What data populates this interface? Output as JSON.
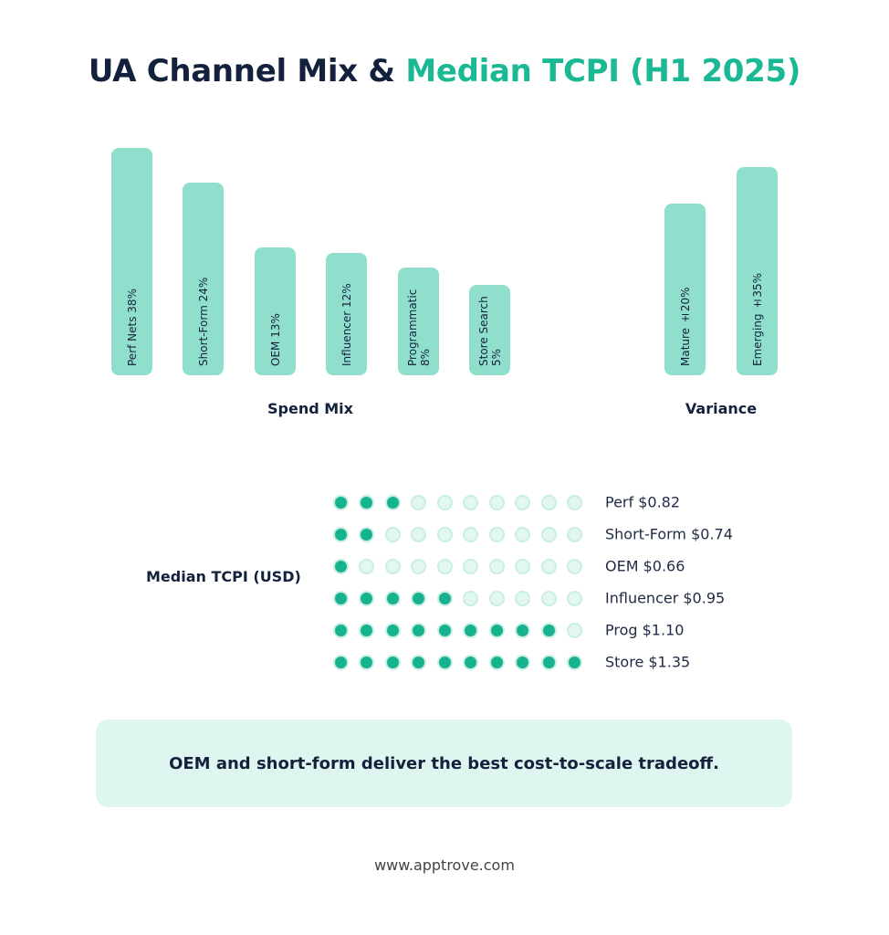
{
  "title": {
    "part1": "UA Channel Mix &",
    "part2": "Median TCPI (H1 2025)"
  },
  "spend_mix": {
    "label": "Spend Mix",
    "bars": [
      "Perf Nets 38%",
      "Short-Form 24%",
      "OEM 13%",
      "Influencer 12%",
      "Programmatic 8%",
      "Store Search 5%"
    ]
  },
  "variance": {
    "label": "Variance",
    "bars": [
      "Mature ±20%",
      "Emerging ±35%"
    ]
  },
  "tcpi": {
    "label": "Median TCPI (USD)",
    "total_dots": 10,
    "rows": [
      {
        "label": "Perf $0.82",
        "filled": 3
      },
      {
        "label": "Short-Form $0.74",
        "filled": 2
      },
      {
        "label": "OEM $0.66",
        "filled": 1
      },
      {
        "label": "Influencer $0.95",
        "filled": 5
      },
      {
        "label": "Prog $1.10",
        "filled": 9
      },
      {
        "label": "Store $1.35",
        "filled": 10
      }
    ]
  },
  "callout": "OEM and short-form deliver the best cost-to-scale tradeoff.",
  "footer": "www.apptrove.com"
}
